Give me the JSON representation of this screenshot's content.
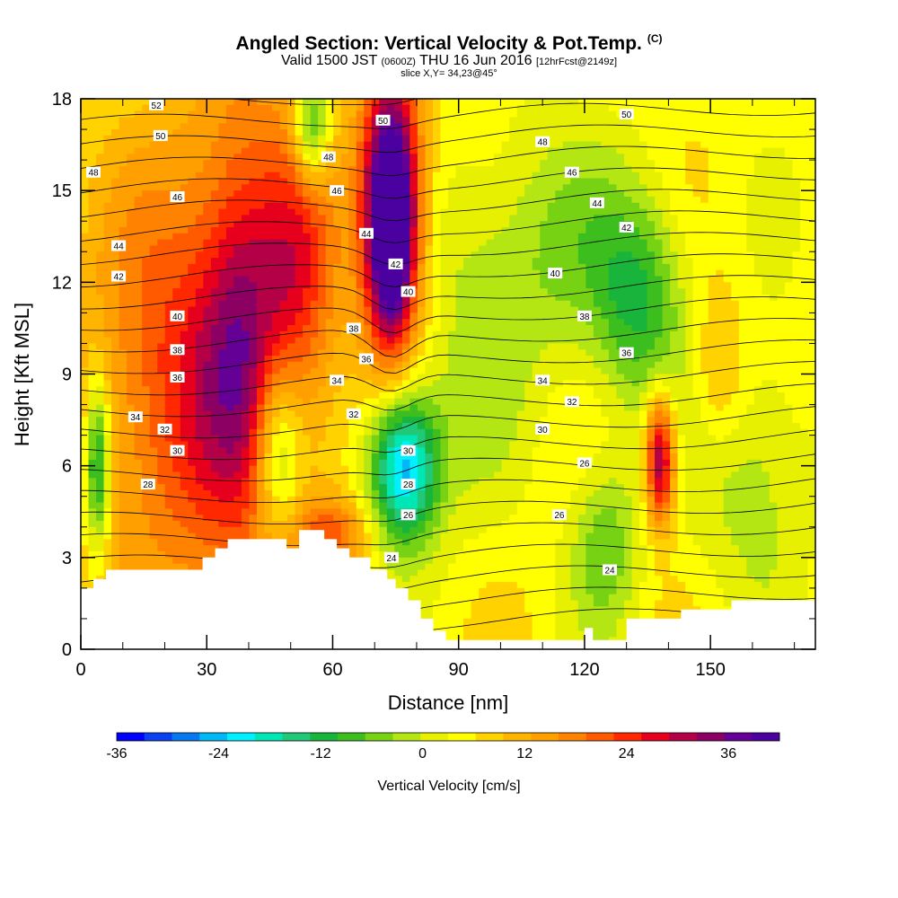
{
  "header": {
    "title": "Angled Section: Vertical Velocity & Pot.Temp.",
    "copyright": "(C)",
    "valid_prefix": "Valid 1500 JST",
    "utc": "(0600Z)",
    "valid_suffix": "THU 16 Jun 2016",
    "forecast": "[12hrFcst@2149z]",
    "slice": "slice X,Y= 34,23@45°"
  },
  "chart_data": {
    "type": "heatmap",
    "title": "Angled Section: Vertical Velocity & Pot.Temp.",
    "xlabel": "Distance [nm]",
    "ylabel": "Height [Kft MSL]",
    "xlim": [
      0,
      175
    ],
    "ylim": [
      0,
      18
    ],
    "xticks": [
      0,
      30,
      60,
      90,
      120,
      150
    ],
    "yticks": [
      0,
      3,
      6,
      9,
      12,
      15,
      18
    ],
    "colorbar": {
      "label": "Vertical Velocity [cm/s]",
      "range": [
        -36,
        42
      ],
      "step": 3,
      "ticks": [
        -36,
        -24,
        -12,
        0,
        12,
        24,
        36
      ],
      "colors": [
        "#0000ff",
        "#0a40f0",
        "#0878f0",
        "#00b8f5",
        "#00f0ff",
        "#00e6b4",
        "#20c878",
        "#18b43c",
        "#3cbe1e",
        "#78d214",
        "#b4e614",
        "#e6f000",
        "#ffff00",
        "#ffd200",
        "#ffb400",
        "#ffa000",
        "#ff8200",
        "#ff5a00",
        "#ff2800",
        "#e6001e",
        "#b40046",
        "#8c0064",
        "#640096",
        "#4b00a0"
      ]
    },
    "terrain": [
      [
        0,
        2
      ],
      [
        3,
        2
      ],
      [
        3,
        2.3
      ],
      [
        6,
        2.3
      ],
      [
        6,
        2.6
      ],
      [
        29,
        2.6
      ],
      [
        29,
        3
      ],
      [
        32,
        3
      ],
      [
        32,
        3.3
      ],
      [
        35,
        3.3
      ],
      [
        35,
        3.6
      ],
      [
        49,
        3.6
      ],
      [
        49,
        3.3
      ],
      [
        52,
        3.3
      ],
      [
        52,
        3.9
      ],
      [
        58,
        3.9
      ],
      [
        58,
        3.6
      ],
      [
        61,
        3.6
      ],
      [
        61,
        3.3
      ],
      [
        64,
        3.3
      ],
      [
        64,
        3
      ],
      [
        69,
        3
      ],
      [
        69,
        2.6
      ],
      [
        73,
        2.6
      ],
      [
        73,
        2.3
      ],
      [
        75,
        2.3
      ],
      [
        75,
        2
      ],
      [
        78,
        2
      ],
      [
        78,
        1.6
      ],
      [
        81,
        1.6
      ],
      [
        81,
        1
      ],
      [
        84,
        1
      ],
      [
        84,
        0.6
      ],
      [
        87,
        0.6
      ],
      [
        87,
        0.3
      ],
      [
        120,
        0.3
      ],
      [
        120,
        0.7
      ],
      [
        122,
        0.7
      ],
      [
        122,
        0.3
      ],
      [
        130,
        0.3
      ],
      [
        130,
        1
      ],
      [
        143,
        1
      ],
      [
        143,
        1.3
      ],
      [
        155,
        1.3
      ],
      [
        155,
        1.6
      ],
      [
        165,
        1.6
      ],
      [
        165,
        1.6
      ],
      [
        175,
        1.6
      ]
    ],
    "vertical_velocity_cells": [
      {
        "x": 40,
        "y": 10,
        "sx": 14,
        "sy": 7,
        "v": 15
      },
      {
        "x": 38,
        "y": 10.5,
        "sx": 6,
        "sy": 4,
        "v": 9
      },
      {
        "x": 18,
        "y": 8.5,
        "sx": 14,
        "sy": 5,
        "v": 12
      },
      {
        "x": 52,
        "y": 12.5,
        "sx": 6,
        "sy": 3,
        "v": 9
      },
      {
        "x": 74,
        "y": 14.5,
        "sx": 5,
        "sy": 3.2,
        "v": 42
      },
      {
        "x": 74,
        "y": 13,
        "sx": 3,
        "sy": 2,
        "v": 12
      },
      {
        "x": 77,
        "y": 6,
        "sx": 6,
        "sy": 1.8,
        "v": -30
      },
      {
        "x": 47,
        "y": 6.5,
        "sx": 4,
        "sy": 2,
        "v": -16
      },
      {
        "x": 55,
        "y": 17,
        "sx": 3,
        "sy": 1.3,
        "v": -18
      },
      {
        "x": 138,
        "y": 6.2,
        "sx": 2.5,
        "sy": 1.5,
        "v": 28
      },
      {
        "x": 133,
        "y": 11.5,
        "sx": 8,
        "sy": 2.5,
        "v": -14
      },
      {
        "x": 125,
        "y": 3.5,
        "sx": 6,
        "sy": 2,
        "v": -10
      },
      {
        "x": 160,
        "y": 6,
        "sx": 10,
        "sy": 3,
        "v": -8
      },
      {
        "x": 60,
        "y": 3.8,
        "sx": 6,
        "sy": 0.8,
        "v": 12
      },
      {
        "x": 109,
        "y": 13,
        "sx": 14,
        "sy": 3,
        "v": -8
      },
      {
        "x": 93,
        "y": 9,
        "sx": 8,
        "sy": 4,
        "v": -4
      },
      {
        "x": 152,
        "y": 9,
        "sx": 5,
        "sy": 2,
        "v": 8
      },
      {
        "x": 4,
        "y": 6,
        "sx": 2,
        "sy": 2,
        "v": -20
      }
    ],
    "isentrope_labels": [
      {
        "x": 18,
        "y": 17.8,
        "label": "52"
      },
      {
        "x": 19,
        "y": 16.8,
        "label": "50"
      },
      {
        "x": 72,
        "y": 17.3,
        "label": "50"
      },
      {
        "x": 130,
        "y": 17.5,
        "label": "50"
      },
      {
        "x": 3,
        "y": 15.6,
        "label": "48"
      },
      {
        "x": 59,
        "y": 16.1,
        "label": "48"
      },
      {
        "x": 110,
        "y": 16.6,
        "label": "48"
      },
      {
        "x": 23,
        "y": 14.8,
        "label": "46"
      },
      {
        "x": 61,
        "y": 15,
        "label": "46"
      },
      {
        "x": 117,
        "y": 15.6,
        "label": "46"
      },
      {
        "x": 9,
        "y": 13.2,
        "label": "44"
      },
      {
        "x": 68,
        "y": 13.6,
        "label": "44"
      },
      {
        "x": 123,
        "y": 14.6,
        "label": "44"
      },
      {
        "x": 9,
        "y": 12.2,
        "label": "42"
      },
      {
        "x": 75,
        "y": 12.6,
        "label": "42"
      },
      {
        "x": 130,
        "y": 13.8,
        "label": "42"
      },
      {
        "x": 23,
        "y": 10.9,
        "label": "40"
      },
      {
        "x": 78,
        "y": 11.7,
        "label": "40"
      },
      {
        "x": 113,
        "y": 12.3,
        "label": "40"
      },
      {
        "x": 23,
        "y": 9.8,
        "label": "38"
      },
      {
        "x": 65,
        "y": 10.5,
        "label": "38"
      },
      {
        "x": 120,
        "y": 10.9,
        "label": "38"
      },
      {
        "x": 23,
        "y": 8.9,
        "label": "36"
      },
      {
        "x": 68,
        "y": 9.5,
        "label": "36"
      },
      {
        "x": 130,
        "y": 9.7,
        "label": "36"
      },
      {
        "x": 13,
        "y": 7.6,
        "label": "34"
      },
      {
        "x": 61,
        "y": 8.8,
        "label": "34"
      },
      {
        "x": 110,
        "y": 8.8,
        "label": "34"
      },
      {
        "x": 20,
        "y": 7.2,
        "label": "32"
      },
      {
        "x": 65,
        "y": 7.7,
        "label": "32"
      },
      {
        "x": 117,
        "y": 8.1,
        "label": "32"
      },
      {
        "x": 23,
        "y": 6.5,
        "label": "30"
      },
      {
        "x": 78,
        "y": 6.5,
        "label": "30"
      },
      {
        "x": 110,
        "y": 7.2,
        "label": "30"
      },
      {
        "x": 16,
        "y": 5.4,
        "label": "28"
      },
      {
        "x": 78,
        "y": 5.4,
        "label": "28"
      },
      {
        "x": 120,
        "y": 6.1,
        "label": "26"
      },
      {
        "x": 78,
        "y": 4.4,
        "label": "26"
      },
      {
        "x": 114,
        "y": 4.4,
        "label": "26"
      },
      {
        "x": 74,
        "y": 3,
        "label": "24"
      },
      {
        "x": 126,
        "y": 2.6,
        "label": "24"
      }
    ]
  }
}
